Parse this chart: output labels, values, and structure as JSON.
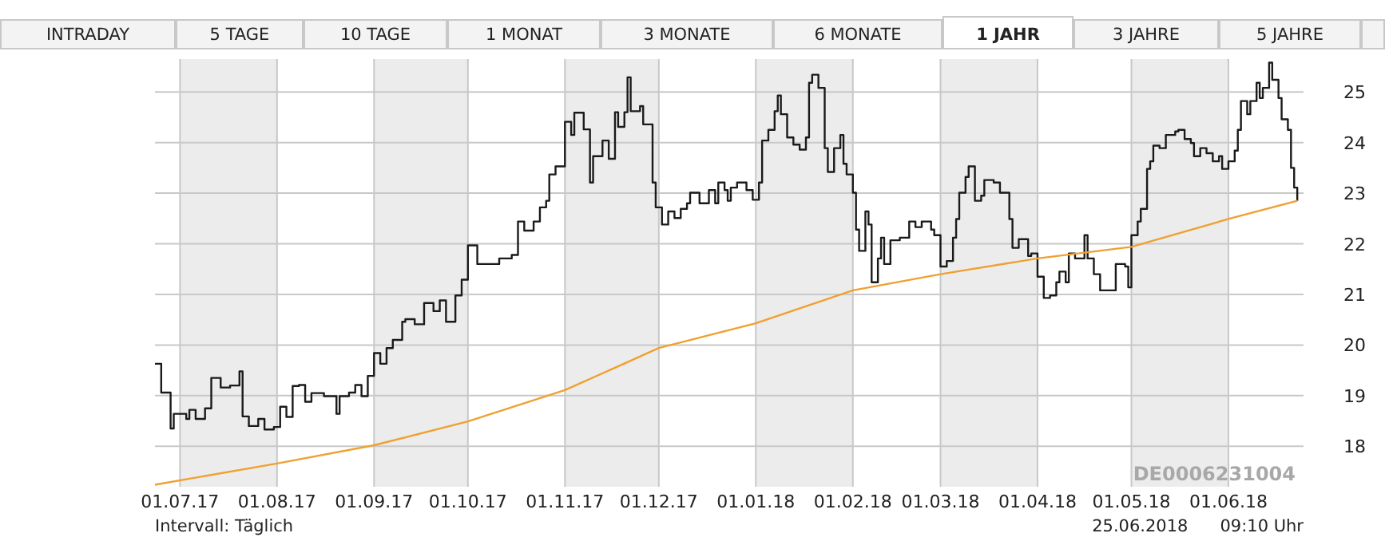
{
  "chart_data": {
    "type": "step",
    "xlim": [
      "2017-06-23",
      "2018-06-25"
    ],
    "xticks": [
      {
        "value": "2017-07-01",
        "label": "01.07.17"
      },
      {
        "value": "2017-08-01",
        "label": "01.08.17"
      },
      {
        "value": "2017-09-01",
        "label": "01.09.17"
      },
      {
        "value": "2017-10-01",
        "label": "01.10.17"
      },
      {
        "value": "2017-11-01",
        "label": "01.11.17"
      },
      {
        "value": "2017-12-01",
        "label": "01.12.17"
      },
      {
        "value": "2018-01-01",
        "label": "01.01.18"
      },
      {
        "value": "2018-02-01",
        "label": "01.02.18"
      },
      {
        "value": "2018-03-01",
        "label": "01.03.18"
      },
      {
        "value": "2018-04-01",
        "label": "01.04.18"
      },
      {
        "value": "2018-05-01",
        "label": "01.05.18"
      },
      {
        "value": "2018-06-01",
        "label": "01.06.18"
      }
    ],
    "ylim": [
      17.2,
      25.65
    ],
    "yticks": [
      18,
      19,
      20,
      21,
      22,
      23,
      24,
      25
    ],
    "grid": true,
    "bands": [
      {
        "axis": "x",
        "from": "2017-07-01",
        "to": "2017-08-01",
        "color": "#ececec"
      },
      {
        "axis": "x",
        "from": "2017-09-01",
        "to": "2017-10-01",
        "color": "#ececec"
      },
      {
        "axis": "x",
        "from": "2017-11-01",
        "to": "2017-12-01",
        "color": "#ececec"
      },
      {
        "axis": "x",
        "from": "2018-01-01",
        "to": "2018-02-01",
        "color": "#ececec"
      },
      {
        "axis": "x",
        "from": "2018-03-01",
        "to": "2018-04-01",
        "color": "#ececec"
      },
      {
        "axis": "x",
        "from": "2018-05-01",
        "to": "2018-06-01",
        "color": "#ececec"
      }
    ],
    "annotations": [
      "INTRADAY",
      "5 TAGE",
      "10 TAGE",
      "1 MONAT",
      "3 MONATE",
      "6 MONATE",
      "1 JAHR",
      "3 JAHRE",
      "5 JAHRE",
      "Intervall: Täglich",
      "25.06.2018      09:10 Uhr",
      "DE0006231004"
    ],
    "series": [
      {
        "color": "#1a1a1a",
        "x": [
          "2017-06-23",
          "2017-06-25",
          "2017-06-28",
          "2017-06-29",
          "2017-07-03",
          "2017-07-04",
          "2017-07-06",
          "2017-07-09",
          "2017-07-11",
          "2017-07-14",
          "2017-07-17",
          "2017-07-20",
          "2017-07-21",
          "2017-07-23",
          "2017-07-26",
          "2017-07-28",
          "2017-07-31",
          "2017-08-02",
          "2017-08-04",
          "2017-08-06",
          "2017-08-08",
          "2017-08-10",
          "2017-08-12",
          "2017-08-16",
          "2017-08-20",
          "2017-08-21",
          "2017-08-24",
          "2017-08-26",
          "2017-08-28",
          "2017-08-30",
          "2017-09-01",
          "2017-09-03",
          "2017-09-05",
          "2017-09-07",
          "2017-09-10",
          "2017-09-11",
          "2017-09-14",
          "2017-09-17",
          "2017-09-20",
          "2017-09-22",
          "2017-09-24",
          "2017-09-27",
          "2017-09-29",
          "2017-10-01",
          "2017-10-04",
          "2017-10-08",
          "2017-10-11",
          "2017-10-15",
          "2017-10-17",
          "2017-10-19",
          "2017-10-22",
          "2017-10-24",
          "2017-10-26",
          "2017-10-27",
          "2017-10-29",
          "2017-11-01",
          "2017-11-03",
          "2017-11-04",
          "2017-11-07",
          "2017-11-09",
          "2017-11-10",
          "2017-11-13",
          "2017-11-15",
          "2017-11-17",
          "2017-11-18",
          "2017-11-20",
          "2017-11-21",
          "2017-11-22",
          "2017-11-25",
          "2017-11-26",
          "2017-11-29",
          "2017-11-30",
          "2017-12-02",
          "2017-12-04",
          "2017-12-06",
          "2017-12-08",
          "2017-12-10",
          "2017-12-11",
          "2017-12-14",
          "2017-12-17",
          "2017-12-19",
          "2017-12-20",
          "2017-12-22",
          "2017-12-23",
          "2017-12-24",
          "2017-12-26",
          "2017-12-29",
          "2017-12-31",
          "2018-01-02",
          "2018-01-03",
          "2018-01-05",
          "2018-01-07",
          "2018-01-08",
          "2018-01-09",
          "2018-01-11",
          "2018-01-13",
          "2018-01-15",
          "2018-01-17",
          "2018-01-18",
          "2018-01-19",
          "2018-01-21",
          "2018-01-23",
          "2018-01-24",
          "2018-01-26",
          "2018-01-28",
          "2018-01-29",
          "2018-01-30",
          "2018-02-01",
          "2018-02-02",
          "2018-02-03",
          "2018-02-05",
          "2018-02-06",
          "2018-02-07",
          "2018-02-09",
          "2018-02-10",
          "2018-02-11",
          "2018-02-13",
          "2018-02-16",
          "2018-02-19",
          "2018-02-21",
          "2018-02-23",
          "2018-02-26",
          "2018-02-27",
          "2018-03-01",
          "2018-03-03",
          "2018-03-05",
          "2018-03-06",
          "2018-03-07",
          "2018-03-09",
          "2018-03-10",
          "2018-03-12",
          "2018-03-14",
          "2018-03-15",
          "2018-03-18",
          "2018-03-20",
          "2018-03-23",
          "2018-03-24",
          "2018-03-26",
          "2018-03-29",
          "2018-03-30",
          "2018-04-01",
          "2018-04-03",
          "2018-04-05",
          "2018-04-07",
          "2018-04-08",
          "2018-04-10",
          "2018-04-11",
          "2018-04-13",
          "2018-04-15",
          "2018-04-16",
          "2018-04-17",
          "2018-04-19",
          "2018-04-21",
          "2018-04-24",
          "2018-04-26",
          "2018-04-29",
          "2018-04-30",
          "2018-05-01",
          "2018-05-03",
          "2018-05-04",
          "2018-05-06",
          "2018-05-07",
          "2018-05-08",
          "2018-05-10",
          "2018-05-12",
          "2018-05-15",
          "2018-05-16",
          "2018-05-18",
          "2018-05-20",
          "2018-05-21",
          "2018-05-23",
          "2018-05-25",
          "2018-05-27",
          "2018-05-29",
          "2018-05-30",
          "2018-06-01",
          "2018-06-03",
          "2018-06-04",
          "2018-06-05",
          "2018-06-07",
          "2018-06-08",
          "2018-06-10",
          "2018-06-11",
          "2018-06-12",
          "2018-06-14",
          "2018-06-15",
          "2018-06-17",
          "2018-06-18",
          "2018-06-20",
          "2018-06-21",
          "2018-06-22",
          "2018-06-23"
        ],
        "values": [
          19.63,
          19.06,
          18.35,
          18.64,
          18.54,
          18.72,
          18.54,
          18.75,
          19.35,
          19.16,
          19.2,
          19.48,
          18.59,
          18.4,
          18.54,
          18.33,
          18.38,
          18.78,
          18.58,
          19.19,
          19.21,
          18.88,
          19.05,
          18.99,
          18.64,
          18.99,
          19.06,
          19.21,
          18.99,
          19.39,
          19.84,
          19.63,
          19.94,
          20.1,
          20.46,
          20.51,
          20.41,
          20.83,
          20.67,
          20.88,
          20.46,
          20.98,
          21.29,
          21.97,
          21.6,
          21.6,
          21.71,
          21.78,
          22.44,
          22.26,
          22.44,
          22.72,
          22.85,
          23.37,
          23.53,
          24.41,
          24.15,
          24.59,
          24.26,
          23.21,
          23.73,
          24.04,
          23.68,
          24.6,
          24.31,
          24.6,
          25.29,
          24.62,
          24.72,
          24.36,
          23.21,
          22.72,
          22.38,
          22.64,
          22.51,
          22.69,
          22.8,
          23.01,
          22.8,
          23.06,
          22.8,
          23.21,
          23.06,
          22.85,
          23.11,
          23.21,
          23.06,
          22.87,
          23.21,
          24.04,
          24.25,
          24.62,
          24.93,
          24.56,
          24.1,
          23.96,
          23.86,
          24.1,
          25.18,
          25.34,
          25.08,
          23.89,
          23.42,
          23.89,
          24.15,
          23.58,
          23.37,
          23.01,
          22.28,
          21.86,
          22.64,
          22.38,
          21.24,
          21.71,
          22.12,
          21.6,
          22.07,
          22.12,
          22.44,
          22.33,
          22.44,
          22.28,
          22.17,
          21.55,
          21.66,
          22.12,
          22.49,
          23.01,
          23.32,
          23.53,
          22.85,
          22.95,
          23.26,
          23.21,
          23.01,
          22.49,
          21.92,
          22.09,
          21.76,
          21.81,
          21.35,
          20.93,
          20.98,
          21.24,
          21.45,
          21.24,
          21.81,
          21.71,
          21.71,
          22.17,
          21.71,
          21.4,
          21.08,
          21.08,
          21.6,
          21.55,
          21.14,
          22.17,
          22.44,
          22.69,
          23.48,
          23.63,
          23.94,
          23.89,
          24.15,
          24.22,
          24.25,
          24.07,
          23.99,
          23.73,
          23.89,
          23.79,
          23.63,
          23.73,
          23.48,
          23.63,
          23.84,
          24.25,
          24.82,
          24.56,
          24.82,
          25.18,
          24.88,
          25.08,
          25.58,
          25.24,
          24.88,
          24.46,
          24.25,
          23.5,
          23.11,
          22.85
        ]
      },
      {
        "type": "line",
        "color": "#f0a030",
        "x": [
          "2017-06-23",
          "2017-08-01",
          "2017-09-01",
          "2017-10-01",
          "2017-11-01",
          "2017-11-18",
          "2017-12-01",
          "2018-01-01",
          "2018-02-01",
          "2018-03-01",
          "2018-04-01",
          "2018-05-01",
          "2018-06-01",
          "2018-06-23"
        ],
        "values": [
          17.24,
          17.66,
          18.02,
          18.49,
          19.11,
          19.58,
          19.94,
          20.43,
          21.08,
          21.4,
          21.71,
          21.94,
          22.49,
          22.85
        ]
      }
    ]
  }
}
